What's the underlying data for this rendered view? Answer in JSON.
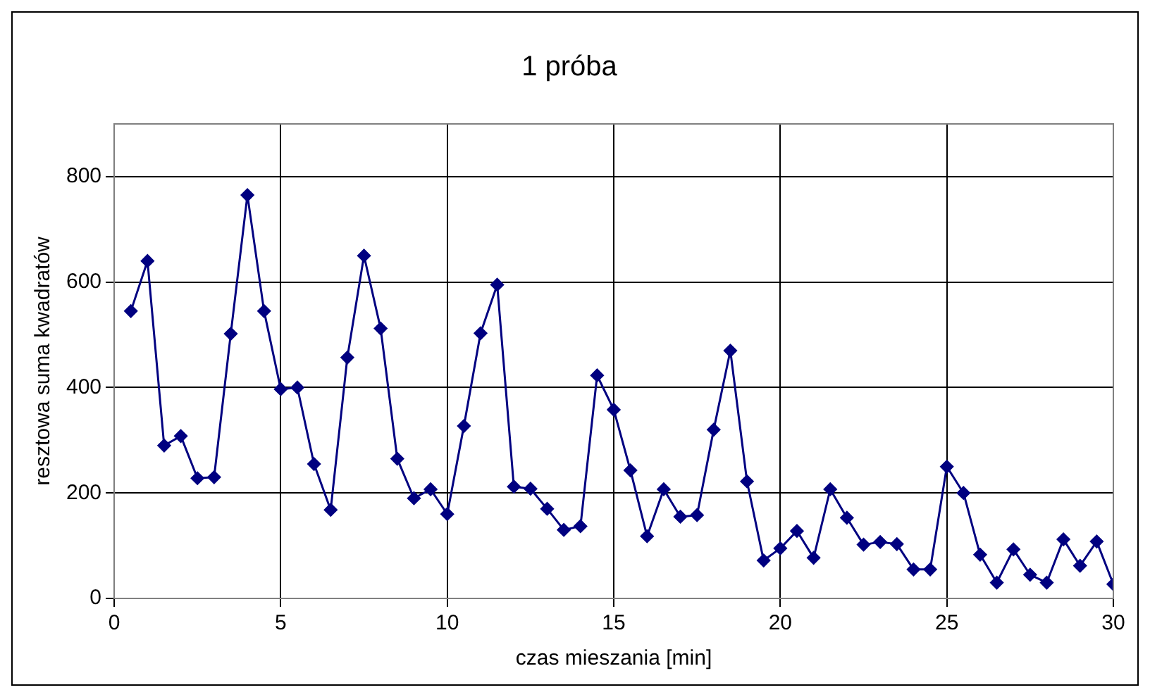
{
  "chart_data": {
    "type": "line",
    "title": "1 próba",
    "xlabel": "czas mieszania [min]",
    "ylabel": "resztowa suma kwadratów",
    "x": [
      0.5,
      1,
      1.5,
      2,
      2.5,
      3,
      3.5,
      4,
      4.5,
      5,
      5.5,
      6,
      6.5,
      7,
      7.5,
      8,
      8.5,
      9,
      9.5,
      10,
      10.5,
      11,
      11.5,
      12,
      12.5,
      13,
      13.5,
      14,
      14.5,
      15,
      15.5,
      16,
      16.5,
      17,
      17.5,
      18,
      18.5,
      19,
      19.5,
      20,
      20.5,
      21,
      21.5,
      22,
      22.5,
      23,
      23.5,
      24,
      24.5,
      25,
      25.5,
      26,
      26.5,
      27,
      27.5,
      28,
      28.5,
      29,
      29.5,
      30
    ],
    "series": [
      {
        "color": "#000080",
        "values": [
          545,
          640,
          290,
          308,
          228,
          230,
          502,
          765,
          545,
          397,
          400,
          255,
          168,
          457,
          650,
          512,
          265,
          190,
          207,
          160,
          327,
          503,
          595,
          212,
          208,
          170,
          130,
          137,
          423,
          358,
          243,
          118,
          207,
          155,
          158,
          320,
          470,
          222,
          72,
          95,
          128,
          77,
          207,
          153,
          102,
          107,
          103,
          55,
          55,
          250,
          200,
          83,
          30,
          93,
          45,
          30,
          112,
          62,
          108,
          27
        ]
      }
    ],
    "xlim": [
      0,
      30
    ],
    "xticks": [
      0,
      5,
      10,
      15,
      20,
      25,
      30
    ],
    "ylim": [
      0,
      900
    ],
    "yticks": [
      0,
      200,
      400,
      600,
      800
    ],
    "grid": true,
    "legend": false,
    "marker": "diamond",
    "line_style": "solid"
  }
}
